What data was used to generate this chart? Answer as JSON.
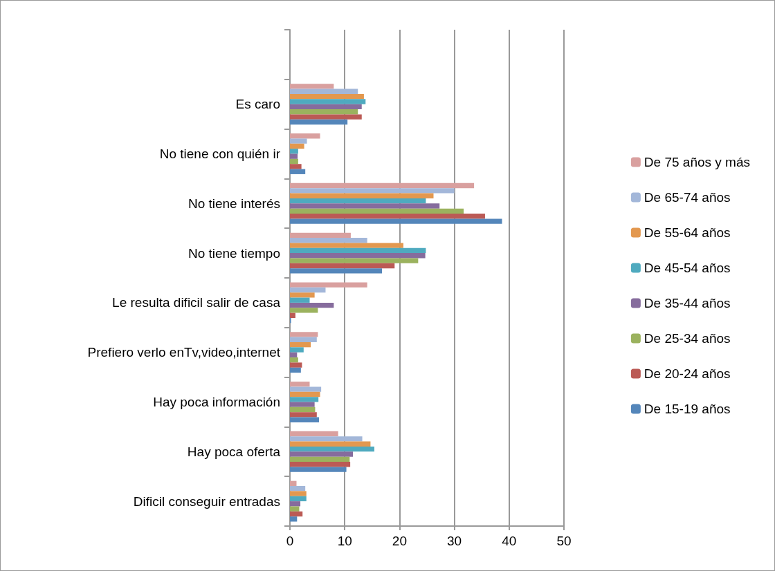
{
  "chart_data": {
    "type": "bar",
    "orientation": "horizontal",
    "categories": [
      null,
      "Es caro",
      "No tiene con quién ir",
      "No tiene interés",
      "No tiene tiempo",
      "Le resulta dificil salir de casa",
      "Prefiero verlo enTv,video,internet",
      "Hay poca información",
      "Hay poca oferta",
      "Dificil conseguir entradas"
    ],
    "series": [
      {
        "name": "De 75 años y más",
        "color": "#d9a09f",
        "values": [
          null,
          8.0,
          5.5,
          33.6,
          11.1,
          14.1,
          5.1,
          3.6,
          8.8,
          1.2
        ]
      },
      {
        "name": "De 65-74 años",
        "color": "#a3b7d9",
        "values": [
          null,
          12.4,
          3.1,
          30.0,
          14.1,
          6.5,
          4.9,
          5.7,
          13.2,
          2.8
        ]
      },
      {
        "name": "De 55-64 años",
        "color": "#e3984f",
        "values": [
          null,
          13.5,
          2.6,
          26.2,
          20.7,
          4.5,
          3.8,
          5.5,
          14.7,
          3.0
        ]
      },
      {
        "name": "De 45-54 años",
        "color": "#4faabf",
        "values": [
          null,
          13.8,
          1.5,
          24.8,
          24.8,
          3.6,
          2.5,
          5.2,
          15.4,
          3.0
        ]
      },
      {
        "name": "De 35-44 años",
        "color": "#866c9d",
        "values": [
          null,
          13.1,
          1.4,
          27.3,
          24.7,
          8.0,
          1.3,
          4.5,
          11.5,
          1.9
        ]
      },
      {
        "name": "De 25-34 años",
        "color": "#9bb25e",
        "values": [
          null,
          12.4,
          1.5,
          31.7,
          23.4,
          5.1,
          1.5,
          4.6,
          10.9,
          1.7
        ]
      },
      {
        "name": "De 20-24 años",
        "color": "#bb5a55",
        "values": [
          null,
          13.1,
          2.1,
          35.6,
          19.1,
          1.0,
          2.2,
          4.9,
          11.0,
          2.3
        ]
      },
      {
        "name": "De 15-19 años",
        "color": "#5486ba",
        "values": [
          null,
          10.5,
          2.8,
          38.7,
          16.8,
          0.2,
          2.0,
          5.3,
          10.3,
          1.3
        ]
      }
    ],
    "xlim": [
      0,
      50
    ],
    "xticks": [
      0,
      10,
      20,
      30,
      40,
      50
    ],
    "grid": "x",
    "legend": "right"
  }
}
